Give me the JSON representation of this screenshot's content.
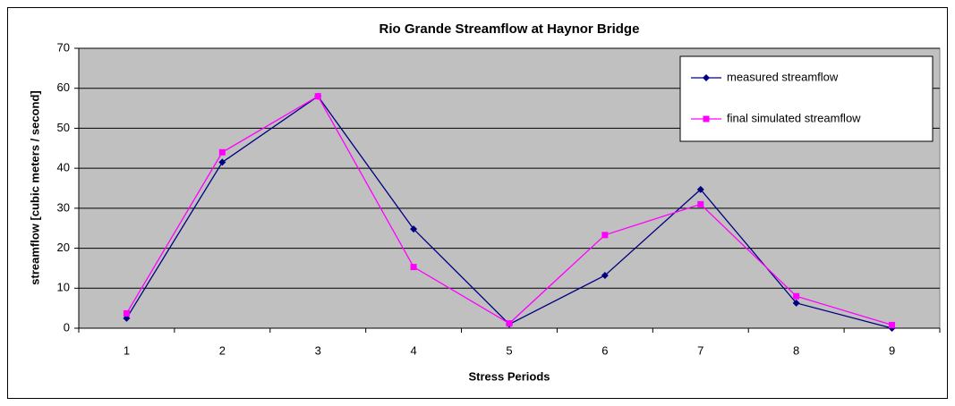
{
  "chart_data": {
    "type": "line",
    "title": "Rio Grande Streamflow at Haynor Bridge",
    "x_label": "Stress Periods",
    "y_label": "streamflow [cubic meters / second]",
    "categories": [
      "1",
      "2",
      "3",
      "4",
      "5",
      "6",
      "7",
      "8",
      "9"
    ],
    "series": [
      {
        "name": "measured streamflow",
        "color": "#000080",
        "marker": "diamond",
        "values": [
          2.5,
          41.5,
          58,
          24.8,
          1,
          13.2,
          34.7,
          6.3,
          0
        ]
      },
      {
        "name": "final simulated streamflow",
        "color": "#ff00ff",
        "marker": "square",
        "values": [
          3.7,
          44,
          58,
          15.3,
          1.2,
          23.3,
          31,
          8,
          0.8
        ]
      }
    ],
    "ylim": [
      0,
      70
    ],
    "yticks": [
      0,
      10,
      20,
      30,
      40,
      50,
      60,
      70
    ],
    "grid": true,
    "legend": "upper right"
  }
}
